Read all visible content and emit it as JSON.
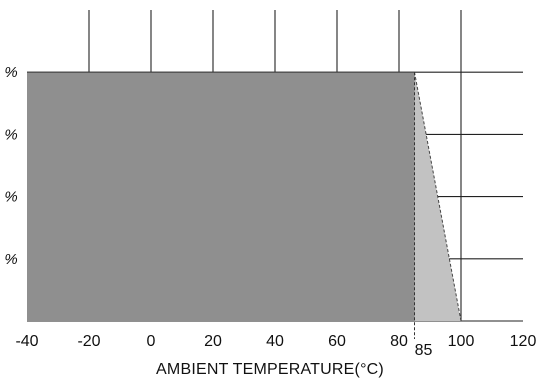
{
  "chart_data": {
    "type": "area",
    "xlabel": "AMBIENT TEMPERATURE(°C)",
    "ylabel": "",
    "xlim": [
      -40,
      120
    ],
    "ylim": [
      0,
      100
    ],
    "x_ticks": [
      -40,
      -20,
      0,
      20,
      40,
      60,
      80,
      100,
      120
    ],
    "x_tick_labels": [
      "-40",
      "-20",
      "0",
      "20",
      "40",
      "60",
      "80",
      "100",
      "120"
    ],
    "y_ticks": [
      20,
      40,
      60,
      80
    ],
    "y_tick_labels": [
      "%",
      "%",
      "%",
      "%"
    ],
    "grid": true,
    "annotations": [
      {
        "text": "85",
        "x": 85
      }
    ],
    "series": [
      {
        "x": [
          -40,
          85
        ],
        "y": [
          80,
          80
        ],
        "color": "#8f8f8f"
      },
      {
        "x": [
          85,
          100
        ],
        "y": [
          80,
          0
        ],
        "color": "#c2c2c2"
      }
    ]
  }
}
